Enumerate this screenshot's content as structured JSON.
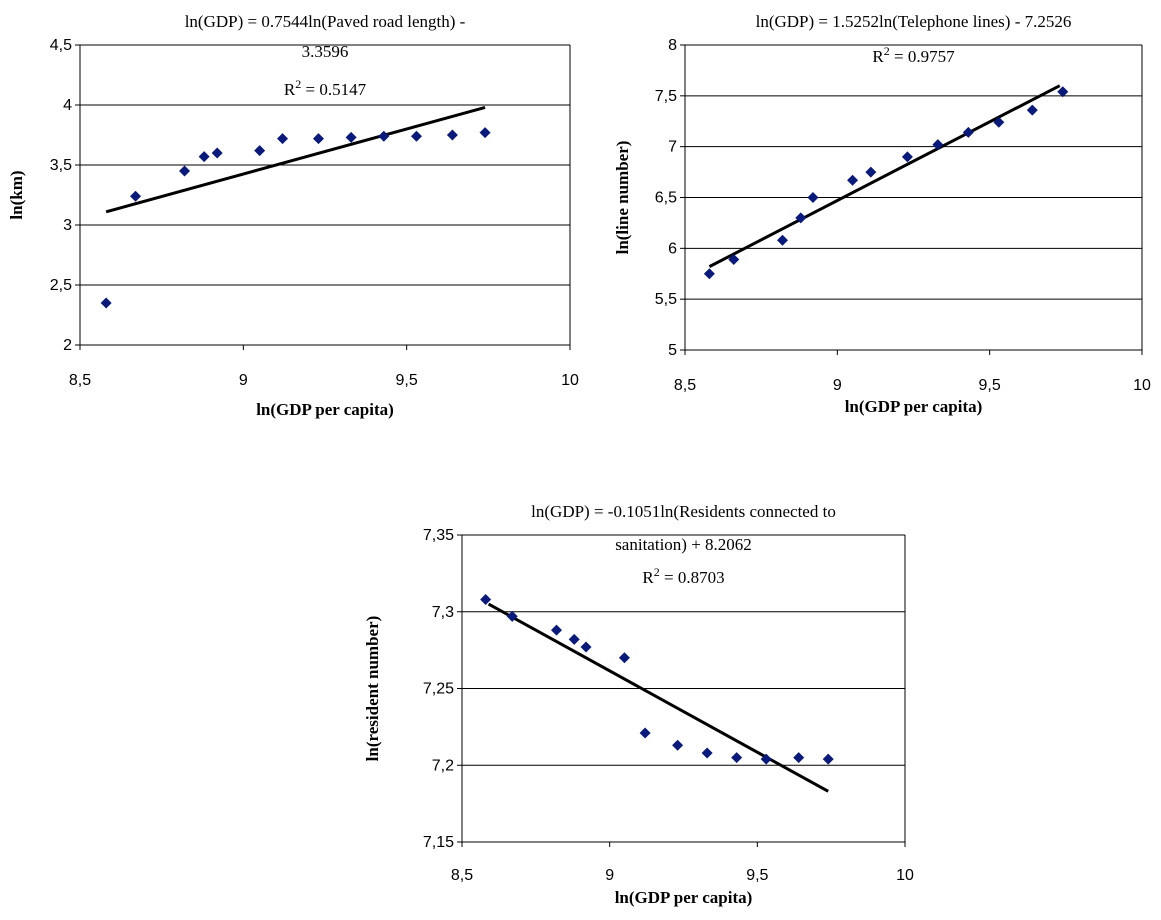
{
  "chart_data": [
    {
      "type": "scatter",
      "title_lines": [
        "ln(GDP) = 0.7544ln(Paved road length) -",
        "3.3596"
      ],
      "r2_label": "R",
      "r2_sup": "2",
      "r2_value": " = 0.5147",
      "xlabel": "ln(GDP per capita)",
      "ylabel": "ln(km)",
      "xlim": [
        8.5,
        10
      ],
      "ylim": [
        2,
        4.5
      ],
      "xticks": [
        8.5,
        9,
        9.5,
        10
      ],
      "yticks": [
        2,
        2.5,
        3,
        3.5,
        4,
        4.5
      ],
      "xtick_labels": [
        "8,5",
        "9",
        "9,5",
        "10"
      ],
      "ytick_labels": [
        "2",
        "2,5",
        "3",
        "3,5",
        "4",
        "4,5"
      ],
      "grid": true,
      "marker_color": "#0A1A7A",
      "points": [
        [
          8.58,
          2.35
        ],
        [
          8.67,
          3.24
        ],
        [
          8.82,
          3.45
        ],
        [
          8.88,
          3.57
        ],
        [
          8.92,
          3.6
        ],
        [
          9.05,
          3.62
        ],
        [
          9.12,
          3.72
        ],
        [
          9.23,
          3.72
        ],
        [
          9.33,
          3.73
        ],
        [
          9.43,
          3.74
        ],
        [
          9.53,
          3.74
        ],
        [
          9.64,
          3.75
        ],
        [
          9.74,
          3.77
        ]
      ],
      "trendline": [
        [
          8.58,
          3.11
        ],
        [
          9.74,
          3.98
        ]
      ]
    },
    {
      "type": "scatter",
      "title_lines": [
        "ln(GDP) = 1.5252ln(Telephone lines) - 7.2526"
      ],
      "r2_label": "R",
      "r2_sup": "2",
      "r2_value": " = 0.9757",
      "xlabel": "ln(GDP per capita)",
      "ylabel": "ln(line number)",
      "xlim": [
        8.5,
        10
      ],
      "ylim": [
        5,
        8
      ],
      "xticks": [
        8.5,
        9,
        9.5,
        10
      ],
      "yticks": [
        5,
        5.5,
        6,
        6.5,
        7,
        7.5,
        8
      ],
      "xtick_labels": [
        "8,5",
        "9",
        "9,5",
        "10"
      ],
      "ytick_labels": [
        "5",
        "5,5",
        "6",
        "6,5",
        "7",
        "7,5",
        "8"
      ],
      "grid": true,
      "marker_color": "#0A1A7A",
      "points": [
        [
          8.58,
          5.75
        ],
        [
          8.66,
          5.89
        ],
        [
          8.82,
          6.08
        ],
        [
          8.88,
          6.3
        ],
        [
          8.92,
          6.5
        ],
        [
          9.05,
          6.67
        ],
        [
          9.11,
          6.75
        ],
        [
          9.23,
          6.9
        ],
        [
          9.33,
          7.02
        ],
        [
          9.43,
          7.14
        ],
        [
          9.53,
          7.24
        ],
        [
          9.64,
          7.36
        ],
        [
          9.74,
          7.54
        ]
      ],
      "trendline": [
        [
          8.58,
          5.82
        ],
        [
          9.73,
          7.6
        ]
      ]
    },
    {
      "type": "scatter",
      "title_lines": [
        "ln(GDP) = -0.1051ln(Residents connected to",
        "sanitation) + 8.2062"
      ],
      "r2_label": "R",
      "r2_sup": "2",
      "r2_value": " = 0.8703",
      "xlabel": "ln(GDP per capita)",
      "ylabel": "ln(resident number)",
      "xlim": [
        8.5,
        10
      ],
      "ylim": [
        7.15,
        7.35
      ],
      "xticks": [
        8.5,
        9,
        9.5,
        10
      ],
      "yticks": [
        7.15,
        7.2,
        7.25,
        7.3,
        7.35
      ],
      "xtick_labels": [
        "8,5",
        "9",
        "9,5",
        "10"
      ],
      "ytick_labels": [
        "7,15",
        "7,2",
        "7,25",
        "7,3",
        "7,35"
      ],
      "grid": true,
      "marker_color": "#0A1A7A",
      "points": [
        [
          8.58,
          7.308
        ],
        [
          8.67,
          7.297
        ],
        [
          8.82,
          7.288
        ],
        [
          8.88,
          7.282
        ],
        [
          8.92,
          7.277
        ],
        [
          9.05,
          7.27
        ],
        [
          9.12,
          7.221
        ],
        [
          9.23,
          7.213
        ],
        [
          9.33,
          7.208
        ],
        [
          9.43,
          7.205
        ],
        [
          9.53,
          7.204
        ],
        [
          9.64,
          7.205
        ],
        [
          9.74,
          7.204
        ]
      ],
      "trendline": [
        [
          8.59,
          7.305
        ],
        [
          9.74,
          7.183
        ]
      ]
    }
  ]
}
